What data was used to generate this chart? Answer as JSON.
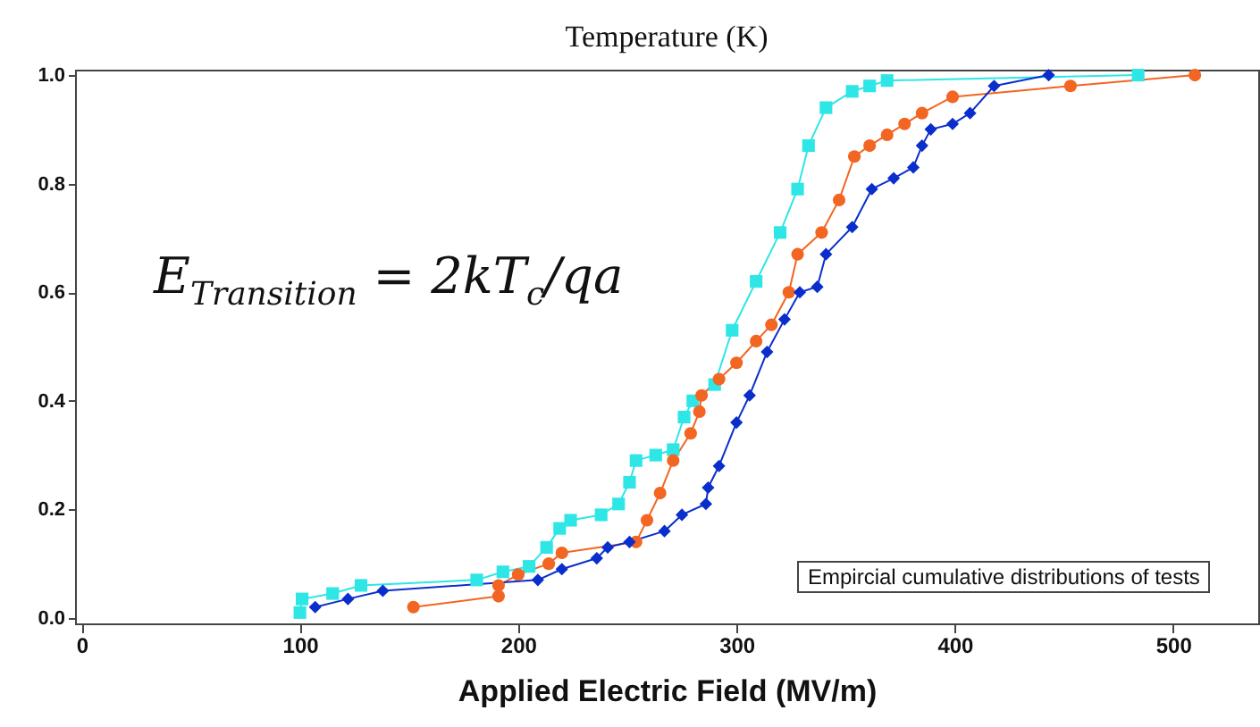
{
  "chart_data": {
    "type": "line",
    "title": "Temperature (K)",
    "xlabel": "Applied Electric Field (MV/m)",
    "annotations": [
      "E$_{Transition}$ = 2kT$_{c}$/qa",
      "Empircial cumulative distributions of tests"
    ],
    "xlim": [
      -3,
      539
    ],
    "xticks": [
      0,
      100,
      200,
      300,
      400,
      500
    ],
    "ylim": [
      -0.01,
      1.01
    ],
    "yticks": [
      {
        "value": 0,
        "label": "0.0"
      },
      {
        "value": 0.2,
        "label": "0.2"
      },
      {
        "value": 0.4,
        "label": "0.4"
      },
      {
        "value": 0.6,
        "label": "0.6"
      },
      {
        "value": 0.8,
        "label": "0.8"
      },
      {
        "value": 1,
        "label": "1.0"
      }
    ],
    "grid": false,
    "legend": false,
    "series": [
      {
        "color": "#2ee6e6",
        "marker": "square",
        "x": [
          100,
          101,
          115,
          128,
          181,
          193,
          205,
          213,
          219,
          224,
          238,
          246,
          251,
          254,
          263,
          271,
          276,
          280,
          290,
          298,
          309,
          320,
          328,
          333,
          341,
          353,
          361,
          369,
          484
        ],
        "values": [
          0.01,
          0.035,
          0.045,
          0.06,
          0.07,
          0.085,
          0.095,
          0.13,
          0.165,
          0.18,
          0.19,
          0.21,
          0.25,
          0.29,
          0.3,
          0.31,
          0.37,
          0.4,
          0.43,
          0.53,
          0.62,
          0.71,
          0.79,
          0.87,
          0.94,
          0.97,
          0.98,
          0.99,
          1.0
        ]
      },
      {
        "color": "#f26522",
        "marker": "circle",
        "x": [
          152,
          191,
          191,
          200,
          214,
          220,
          254,
          259,
          265,
          271,
          279,
          283,
          284,
          292,
          300,
          309,
          316,
          324,
          328,
          339,
          347,
          354,
          361,
          369,
          377,
          385,
          399,
          453,
          510
        ],
        "values": [
          0.02,
          0.04,
          0.06,
          0.08,
          0.1,
          0.12,
          0.14,
          0.18,
          0.23,
          0.29,
          0.34,
          0.38,
          0.41,
          0.44,
          0.47,
          0.51,
          0.54,
          0.6,
          0.67,
          0.71,
          0.77,
          0.85,
          0.87,
          0.89,
          0.91,
          0.93,
          0.96,
          0.98,
          1.0
        ]
      },
      {
        "color": "#0a2ecc",
        "marker": "diamond",
        "x": [
          107,
          122,
          138,
          209,
          220,
          236,
          241,
          251,
          267,
          275,
          286,
          287,
          292,
          300,
          306,
          314,
          322,
          329,
          337,
          341,
          353,
          362,
          372,
          381,
          385,
          389,
          399,
          407,
          418,
          443
        ],
        "values": [
          0.02,
          0.035,
          0.05,
          0.07,
          0.09,
          0.11,
          0.13,
          0.14,
          0.16,
          0.19,
          0.21,
          0.24,
          0.28,
          0.36,
          0.41,
          0.49,
          0.55,
          0.6,
          0.61,
          0.67,
          0.72,
          0.79,
          0.81,
          0.83,
          0.87,
          0.9,
          0.91,
          0.93,
          0.98,
          1.0
        ]
      }
    ]
  }
}
